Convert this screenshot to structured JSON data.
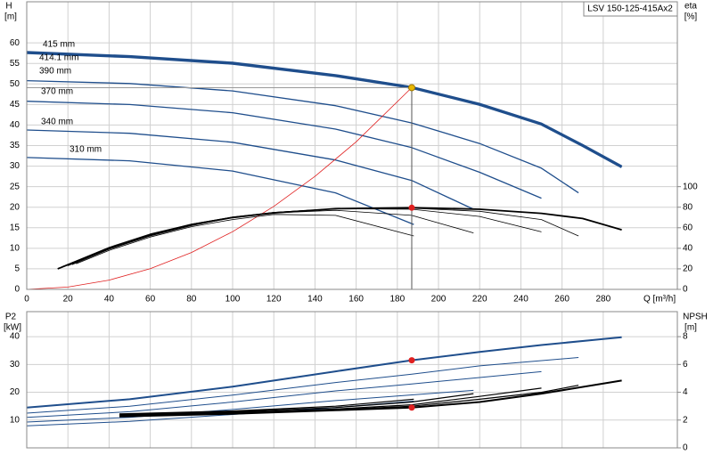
{
  "chart_data": [
    {
      "type": "line",
      "title": "LSV 150-125-415Ax2",
      "ylabel": "H",
      "yunit": "[m]",
      "y2label": "eta",
      "y2unit": "[%]",
      "xlabel": "Q [m³/h]",
      "xlim": [
        0,
        316
      ],
      "xticks": [
        0,
        20,
        40,
        60,
        80,
        100,
        120,
        140,
        160,
        180,
        200,
        220,
        240,
        260,
        280
      ],
      "ylim": [
        0,
        70
      ],
      "yticks": [
        0,
        5,
        10,
        15,
        20,
        25,
        30,
        35,
        40,
        45,
        50,
        55,
        60
      ],
      "y2lim": [
        0,
        280
      ],
      "y2ticks": [
        0,
        20,
        40,
        60,
        80,
        100
      ],
      "grid": true,
      "series": [
        {
          "name": "415 mm",
          "color": "#1f4e8c",
          "width": 1,
          "x": [
            0,
            50,
            100,
            150,
            187,
            220,
            250,
            270,
            289
          ],
          "values": [
            57.9,
            56.9,
            55.3,
            52.3,
            49.4,
            45.3,
            40.5,
            35.3,
            30.1
          ]
        },
        {
          "name": "414.1 mm",
          "color": "#1f4e8c",
          "width": 3,
          "x": [
            0,
            50,
            100,
            150,
            187,
            220,
            250,
            270,
            289
          ],
          "values": [
            57.6,
            56.6,
            55.0,
            52.0,
            49.1,
            45.0,
            40.2,
            35.0,
            29.8
          ]
        },
        {
          "name": "390 mm",
          "color": "#1f4e8c",
          "width": 1.3,
          "x": [
            0,
            50,
            100,
            150,
            187,
            220,
            250,
            268
          ],
          "values": [
            50.8,
            50.1,
            48.3,
            44.7,
            40.5,
            35.5,
            29.5,
            23.5
          ]
        },
        {
          "name": "370 mm",
          "color": "#1f4e8c",
          "width": 1.3,
          "x": [
            0,
            50,
            100,
            150,
            187,
            220,
            250
          ],
          "values": [
            45.8,
            45.0,
            43.0,
            39.0,
            34.5,
            28.5,
            22.2
          ]
        },
        {
          "name": "340 mm",
          "color": "#1f4e8c",
          "width": 1.3,
          "x": [
            0,
            50,
            100,
            150,
            187,
            217
          ],
          "values": [
            38.8,
            38.0,
            35.8,
            31.5,
            26.5,
            19.5
          ]
        },
        {
          "name": "310 mm",
          "color": "#1f4e8c",
          "width": 1.3,
          "x": [
            0,
            50,
            100,
            150,
            188
          ],
          "values": [
            32.1,
            31.3,
            28.8,
            23.5,
            15.8
          ]
        },
        {
          "color": "#e02020",
          "width": 0.8,
          "x": [
            0,
            20,
            40,
            60,
            80,
            100,
            120,
            140,
            160,
            187
          ],
          "values": [
            0,
            0.56,
            2.25,
            5.05,
            8.98,
            14.04,
            20.2,
            27.5,
            35.9,
            49.1
          ]
        },
        {
          "color": "#000000",
          "width": 1.8,
          "axis": "y2",
          "x": [
            15,
            40,
            60,
            80,
            100,
            120,
            150,
            187,
            220,
            250,
            270,
            289
          ],
          "values": [
            20,
            40,
            53,
            63,
            70,
            74.5,
            78.5,
            79.5,
            78,
            74,
            69,
            58
          ]
        },
        {
          "color": "#000000",
          "width": 0.8,
          "axis": "y2",
          "x": [
            17,
            40,
            60,
            80,
            100,
            120,
            150,
            187,
            220,
            250,
            268
          ],
          "values": [
            22,
            41,
            54,
            63.5,
            70.5,
            75,
            78.5,
            79,
            76,
            68,
            52
          ]
        },
        {
          "color": "#000000",
          "width": 0.8,
          "axis": "y2",
          "x": [
            20,
            40,
            60,
            80,
            100,
            120,
            150,
            187,
            220,
            250
          ],
          "values": [
            23,
            40,
            53,
            63,
            70,
            75,
            78.5,
            78,
            71,
            56
          ]
        },
        {
          "color": "#000000",
          "width": 0.8,
          "axis": "y2",
          "x": [
            22,
            40,
            60,
            80,
            100,
            120,
            150,
            187,
            217
          ],
          "values": [
            24,
            39,
            52,
            62,
            70,
            74.5,
            77,
            72,
            55
          ]
        },
        {
          "color": "#000000",
          "width": 0.8,
          "axis": "y2",
          "x": [
            24,
            40,
            60,
            80,
            100,
            120,
            150,
            188
          ],
          "values": [
            25,
            38,
            51,
            61,
            68,
            73,
            72,
            52
          ]
        },
        {
          "color": "#e8b800",
          "marker": true,
          "guides": true,
          "x": [
            187
          ],
          "values": [
            49.1
          ]
        },
        {
          "color": "#e02020",
          "marker": true,
          "axis": "y2",
          "x": [
            187
          ],
          "values": [
            79.5
          ]
        }
      ]
    },
    {
      "type": "line",
      "ylabel": "P2",
      "yunit": "[kW]",
      "y2label": "NPSH",
      "y2unit": "[m]",
      "xlim": [
        0,
        316
      ],
      "ylim": [
        0,
        49
      ],
      "yticks": [
        10,
        20,
        30,
        40
      ],
      "y2lim": [
        0,
        9.8
      ],
      "y2ticks": [
        0,
        2,
        4,
        6,
        8
      ],
      "grid": true,
      "series": [
        {
          "color": "#1f4e8c",
          "width": 2,
          "x": [
            0,
            50,
            100,
            150,
            187,
            220,
            250,
            289
          ],
          "values": [
            14.5,
            17.5,
            22,
            27.5,
            31.5,
            34.5,
            37,
            39.8
          ]
        },
        {
          "color": "#1f4e8c",
          "width": 1,
          "x": [
            0,
            50,
            100,
            150,
            187,
            220,
            268
          ],
          "values": [
            12.5,
            15,
            19,
            23.5,
            26.5,
            29.5,
            32.5
          ]
        },
        {
          "color": "#1f4e8c",
          "width": 1,
          "x": [
            0,
            50,
            100,
            150,
            187,
            250
          ],
          "values": [
            11,
            13,
            16.5,
            20.5,
            23,
            27.4
          ]
        },
        {
          "color": "#1f4e8c",
          "width": 1,
          "x": [
            0,
            50,
            100,
            150,
            217
          ],
          "values": [
            9.3,
            11,
            13.8,
            17,
            20.7
          ]
        },
        {
          "color": "#1f4e8c",
          "width": 1,
          "x": [
            0,
            50,
            100,
            150,
            188
          ],
          "values": [
            7.9,
            9.5,
            12,
            14.5,
            16.8
          ]
        },
        {
          "color": "#000000",
          "width": 2,
          "axis": "y2",
          "x": [
            45,
            100,
            150,
            187,
            220,
            250,
            289
          ],
          "values": [
            2.26,
            2.45,
            2.7,
            2.9,
            3.3,
            3.9,
            4.84
          ]
        },
        {
          "color": "#000000",
          "width": 1.2,
          "axis": "y2",
          "x": [
            45,
            100,
            150,
            187,
            220,
            250,
            268
          ],
          "values": [
            2.3,
            2.5,
            2.75,
            3.0,
            3.5,
            4.0,
            4.5
          ]
        },
        {
          "color": "#000000",
          "width": 1.2,
          "axis": "y2",
          "x": [
            45,
            100,
            150,
            187,
            220,
            250
          ],
          "values": [
            2.35,
            2.55,
            2.8,
            3.1,
            3.7,
            4.3
          ]
        },
        {
          "color": "#000000",
          "width": 1.2,
          "axis": "y2",
          "x": [
            45,
            100,
            150,
            187,
            217
          ],
          "values": [
            2.4,
            2.6,
            2.9,
            3.3,
            3.9
          ]
        },
        {
          "color": "#000000",
          "width": 1.2,
          "axis": "y2",
          "x": [
            45,
            100,
            150,
            188
          ],
          "values": [
            2.45,
            2.65,
            3.0,
            3.5
          ]
        },
        {
          "color": "#e02020",
          "marker": true,
          "x": [
            187
          ],
          "values": [
            31.5
          ]
        },
        {
          "color": "#e02020",
          "marker": true,
          "axis": "y2",
          "x": [
            187
          ],
          "values": [
            2.9
          ]
        }
      ]
    }
  ]
}
